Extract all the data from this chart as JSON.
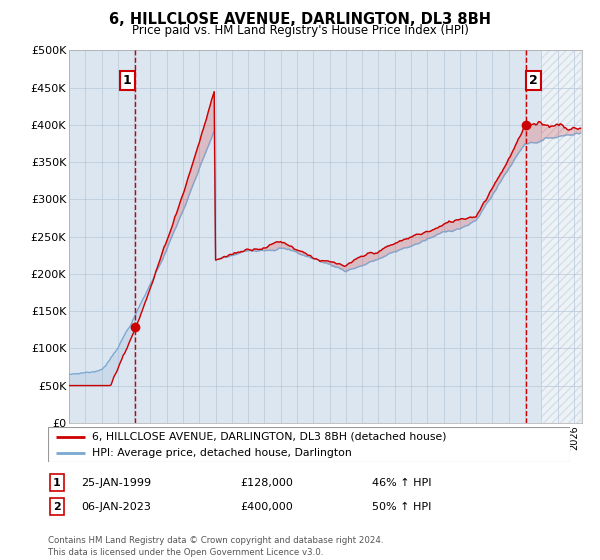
{
  "title": "6, HILLCLOSE AVENUE, DARLINGTON, DL3 8BH",
  "subtitle": "Price paid vs. HM Land Registry's House Price Index (HPI)",
  "ylim": [
    0,
    500000
  ],
  "yticks": [
    0,
    50000,
    100000,
    150000,
    200000,
    250000,
    300000,
    350000,
    400000,
    450000,
    500000
  ],
  "ytick_labels": [
    "£0",
    "£50K",
    "£100K",
    "£150K",
    "£200K",
    "£250K",
    "£300K",
    "£350K",
    "£400K",
    "£450K",
    "£500K"
  ],
  "chart_bg": "#dce6f0",
  "background_color": "#ffffff",
  "grid_color": "#b8c8d8",
  "hpi_color": "#7aa8d2",
  "price_color": "#cc0000",
  "vline_color": "#cc0000",
  "sale1_date": 1999.07,
  "sale1_price": 128000,
  "sale2_date": 2023.04,
  "sale2_price": 400000,
  "legend_line1": "6, HILLCLOSE AVENUE, DARLINGTON, DL3 8BH (detached house)",
  "legend_line2": "HPI: Average price, detached house, Darlington",
  "table_row1_num": "1",
  "table_row1_date": "25-JAN-1999",
  "table_row1_price": "£128,000",
  "table_row1_pct": "46% ↑ HPI",
  "table_row2_num": "2",
  "table_row2_date": "06-JAN-2023",
  "table_row2_price": "£400,000",
  "table_row2_pct": "50% ↑ HPI",
  "footer": "Contains HM Land Registry data © Crown copyright and database right 2024.\nThis data is licensed under the Open Government Licence v3.0.",
  "xmin": 1995.0,
  "xmax": 2026.5
}
